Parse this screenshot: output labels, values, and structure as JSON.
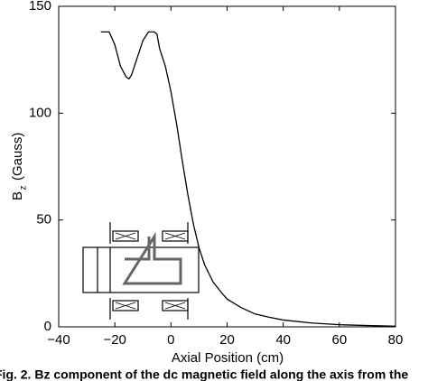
{
  "chart_data": {
    "type": "line",
    "x_label": "Axial Position (cm)",
    "y_label": {
      "main": "B",
      "sub": "z",
      "unit": "(Gauss)"
    },
    "caption": "Fig. 2.  Bz component of the dc magnetic field along the axis from the",
    "x": [
      -25,
      -22,
      -20,
      -18,
      -16,
      -15,
      -14,
      -12,
      -10,
      -8,
      -6,
      -5,
      -4,
      -2,
      0,
      2,
      4,
      6,
      8,
      10,
      12,
      15,
      18,
      20,
      25,
      30,
      35,
      40,
      50,
      60,
      70,
      80
    ],
    "series": [
      {
        "color": "#000000",
        "values": [
          138,
          138,
          132,
          122,
          117,
          116,
          118,
          126,
          134,
          138,
          138,
          137,
          130,
          122,
          110,
          95,
          78,
          62,
          48,
          37,
          29,
          21,
          16,
          13,
          9,
          6,
          4.5,
          3.2,
          1.8,
          1,
          0.6,
          0.3
        ]
      }
    ],
    "xlim": [
      -40,
      80
    ],
    "xticks": [
      {
        "value": -40,
        "label": "−40"
      },
      {
        "value": -20,
        "label": "−20"
      },
      0,
      20,
      40,
      60,
      80
    ],
    "ylim": [
      0,
      150
    ],
    "yticks": [
      0,
      50,
      100,
      150
    ]
  }
}
